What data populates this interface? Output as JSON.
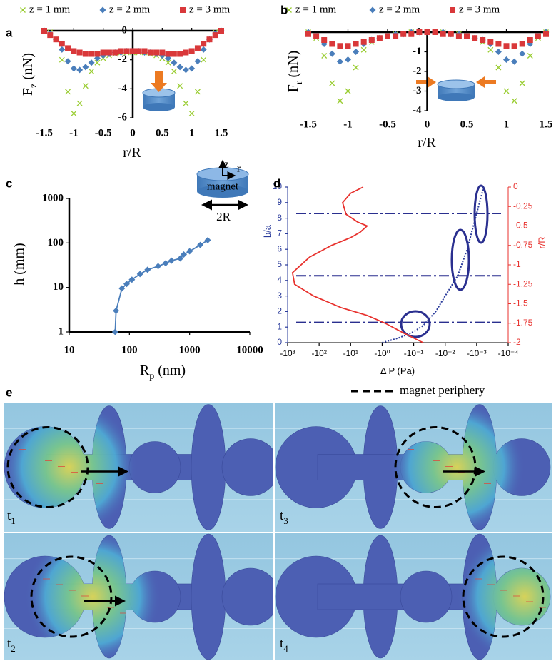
{
  "chart_data": [
    {
      "type": "line",
      "panel_label": "a",
      "x": [
        -1.5,
        -1.4,
        -1.3,
        -1.2,
        -1.1,
        -1,
        -0.9,
        -0.8,
        -0.7,
        -0.6,
        -0.5,
        -0.4,
        -0.3,
        -0.2,
        -0.1,
        0,
        0.1,
        0.2,
        0.3,
        0.4,
        0.5,
        0.6,
        0.7,
        0.8,
        0.9,
        1,
        1.1,
        1.2,
        1.3,
        1.4,
        1.5
      ],
      "series": [
        {
          "name": "z = 1 mm",
          "color": "#9acd32",
          "marker": "x",
          "line_style": "none",
          "values": [
            0,
            -0.1,
            -0.6,
            -2.0,
            -4.2,
            -5.7,
            -5.0,
            -3.8,
            -2.8,
            -2.2,
            -1.9,
            -1.7,
            -1.6,
            -1.5,
            -1.5,
            -1.5,
            -1.5,
            -1.5,
            -1.6,
            -1.7,
            -1.9,
            -2.2,
            -2.8,
            -3.8,
            -5.0,
            -5.7,
            -4.2,
            -2.0,
            -0.6,
            -0.1,
            0
          ]
        },
        {
          "name": "z = 2 mm",
          "color": "#4a7ebb",
          "marker": "diamond",
          "line_style": "none",
          "values": [
            0,
            -0.2,
            -0.6,
            -1.3,
            -2.1,
            -2.6,
            -2.7,
            -2.5,
            -2.2,
            -1.9,
            -1.7,
            -1.6,
            -1.5,
            -1.5,
            -1.4,
            -1.4,
            -1.4,
            -1.5,
            -1.5,
            -1.6,
            -1.7,
            -1.9,
            -2.2,
            -2.5,
            -2.7,
            -2.6,
            -2.1,
            -1.3,
            -0.6,
            -0.2,
            0
          ]
        },
        {
          "name": "z = 3 mm",
          "color": "#d9383a",
          "marker": "square",
          "line_style": "none",
          "values": [
            0,
            -0.3,
            -0.6,
            -0.9,
            -1.2,
            -1.4,
            -1.5,
            -1.6,
            -1.6,
            -1.6,
            -1.5,
            -1.5,
            -1.5,
            -1.4,
            -1.4,
            -1.4,
            -1.4,
            -1.4,
            -1.5,
            -1.5,
            -1.5,
            -1.6,
            -1.6,
            -1.6,
            -1.5,
            -1.4,
            -1.2,
            -0.9,
            -0.6,
            -0.3,
            0
          ]
        }
      ],
      "xlim": [
        -1.5,
        1.5
      ],
      "ylim": [
        -6,
        0
      ],
      "xticks": [
        -1.5,
        -1,
        -0.5,
        0,
        0.5,
        1,
        1.5
      ],
      "yticks": [
        0,
        -2,
        -4,
        -6
      ],
      "xlabel": "r/R",
      "ylabel": "F",
      "ylabel_sub": "z",
      "ylabel_unit": "(nN)"
    },
    {
      "type": "line",
      "panel_label": "b",
      "x": [
        -1.5,
        -1.4,
        -1.3,
        -1.2,
        -1.1,
        -1,
        -0.9,
        -0.8,
        -0.7,
        -0.6,
        -0.5,
        -0.4,
        -0.3,
        -0.2,
        -0.1,
        0,
        0.1,
        0.2,
        0.3,
        0.4,
        0.5,
        0.6,
        0.7,
        0.8,
        0.9,
        1,
        1.1,
        1.2,
        1.3,
        1.4,
        1.5
      ],
      "series": [
        {
          "name": "z = 1 mm",
          "color": "#9acd32",
          "marker": "x",
          "line_style": "none",
          "values": [
            0,
            -0.3,
            -1.2,
            -2.6,
            -3.5,
            -3.0,
            -1.8,
            -0.9,
            -0.5,
            -0.3,
            -0.2,
            -0.1,
            -0.1,
            0,
            0,
            0,
            0,
            0,
            -0.1,
            -0.1,
            -0.2,
            -0.3,
            -0.5,
            -0.9,
            -1.8,
            -3.0,
            -3.5,
            -2.6,
            -1.2,
            -0.3,
            0
          ]
        },
        {
          "name": "z = 2 mm",
          "color": "#4a7ebb",
          "marker": "diamond",
          "line_style": "none",
          "values": [
            0,
            -0.2,
            -0.6,
            -1.1,
            -1.5,
            -1.4,
            -1.0,
            -0.6,
            -0.4,
            -0.3,
            -0.2,
            -0.1,
            -0.1,
            0,
            0,
            0,
            0,
            0,
            -0.1,
            -0.1,
            -0.2,
            -0.3,
            -0.4,
            -0.6,
            -1.0,
            -1.4,
            -1.5,
            -1.1,
            -0.6,
            -0.2,
            0
          ]
        },
        {
          "name": "z = 3 mm",
          "color": "#d9383a",
          "marker": "square",
          "line_style": "none",
          "values": [
            -0.1,
            -0.2,
            -0.4,
            -0.6,
            -0.7,
            -0.7,
            -0.6,
            -0.5,
            -0.4,
            -0.3,
            -0.2,
            -0.2,
            -0.1,
            -0.1,
            0,
            0,
            0,
            -0.1,
            -0.1,
            -0.2,
            -0.2,
            -0.3,
            -0.4,
            -0.5,
            -0.6,
            -0.7,
            -0.7,
            -0.6,
            -0.4,
            -0.2,
            -0.1
          ]
        }
      ],
      "xlim": [
        -1.5,
        1.5
      ],
      "ylim": [
        -4,
        0
      ],
      "xticks": [
        -1.5,
        -1,
        -0.5,
        0,
        0.5,
        1,
        1.5
      ],
      "yticks": [
        0,
        -1,
        -2,
        -3,
        -4
      ],
      "xlabel": "r/R",
      "ylabel": "F",
      "ylabel_sub": "r",
      "ylabel_unit": "(nN)"
    },
    {
      "type": "line",
      "panel_label": "c",
      "xscale": "log",
      "yscale": "log",
      "x": [
        58,
        60,
        75,
        90,
        110,
        150,
        200,
        300,
        400,
        500,
        700,
        800,
        1000,
        1500,
        2000
      ],
      "series": [
        {
          "color": "#4a7ebb",
          "marker": "diamond",
          "line_style": "solid",
          "values": [
            1,
            3,
            9.5,
            12,
            15,
            20,
            25,
            30,
            35,
            40,
            45,
            55,
            65,
            90,
            115
          ]
        }
      ],
      "xlim": [
        10,
        10000
      ],
      "ylim": [
        1,
        1000
      ],
      "xticks": [
        10,
        100,
        1000,
        10000
      ],
      "yticks": [
        1,
        10,
        100,
        1000
      ],
      "xlabel": "R",
      "xlabel_sub": "p",
      "xlabel_unit": "(nm)",
      "ylabel": "h (mm)"
    },
    {
      "type": "line",
      "panel_label": "d",
      "xscale": "log",
      "series": [
        {
          "color": "#2a3b9b",
          "marker": "none",
          "line_style": "dotted",
          "x": [
            -1,
            -0.3,
            -0.1,
            -0.05,
            -0.02,
            -0.01,
            -0.004,
            -0.002,
            -0.001,
            -0.0006
          ],
          "values": [
            0,
            0.3,
            0.7,
            1.1,
            2,
            3,
            4.3,
            6,
            8.3,
            10
          ]
        },
        {
          "color": "#e8322e",
          "marker": "none",
          "line_style": "solid",
          "axis": "y2",
          "x": [
            -4,
            -10,
            -18,
            -14,
            -6,
            -3,
            -5,
            -10,
            -40,
            -200,
            -700,
            -600,
            -150,
            -20,
            -3,
            -0.8,
            -0.2,
            -0.05
          ],
          "values": [
            0,
            -0.08,
            -0.2,
            -0.35,
            -0.45,
            -0.5,
            -0.58,
            -0.65,
            -0.75,
            -0.9,
            -1.1,
            -1.25,
            -1.4,
            -1.55,
            -1.65,
            -1.75,
            -1.88,
            -2
          ]
        }
      ],
      "hlines": [
        8.3,
        4.3,
        1.3
      ],
      "hline_color": "#2a2f8f",
      "xlim": [
        -1000,
        -0.0001
      ],
      "ylim": [
        0,
        10
      ],
      "y2lim": [
        -2,
        0
      ],
      "xticks": [
        {
          "value": -1000,
          "label": "-10³"
        },
        {
          "value": -100,
          "label": "-10²"
        },
        {
          "value": -10,
          "label": "-10¹"
        },
        {
          "value": -1,
          "label": "-10⁰"
        },
        {
          "value": -0.1,
          "label": "-10⁻¹"
        },
        {
          "value": -0.01,
          "label": "-10⁻²"
        },
        {
          "value": -0.001,
          "label": "-10⁻³"
        },
        {
          "value": -0.0001,
          "label": "-10⁻⁴"
        }
      ],
      "yticks": [
        0,
        1,
        2,
        3,
        4,
        5,
        6,
        7,
        8,
        9,
        10
      ],
      "y2ticks": [
        0,
        -0.25,
        -0.5,
        -0.75,
        -1,
        -1.25,
        -1.5,
        -1.75,
        -2
      ],
      "xlabel": "Δ P (Pa)",
      "ylabel": "b/a",
      "y2label": "r/R"
    }
  ],
  "magnet_diagram": {
    "z": "z",
    "r": "r",
    "label": "magnet",
    "width_label": "2R"
  },
  "figure_e": {
    "panel_label": "e",
    "legend": "magnet periphery",
    "frames": [
      {
        "label": "t",
        "sub": "1"
      },
      {
        "label": "t",
        "sub": "3"
      },
      {
        "label": "t",
        "sub": "2"
      },
      {
        "label": "t",
        "sub": "4"
      }
    ]
  }
}
